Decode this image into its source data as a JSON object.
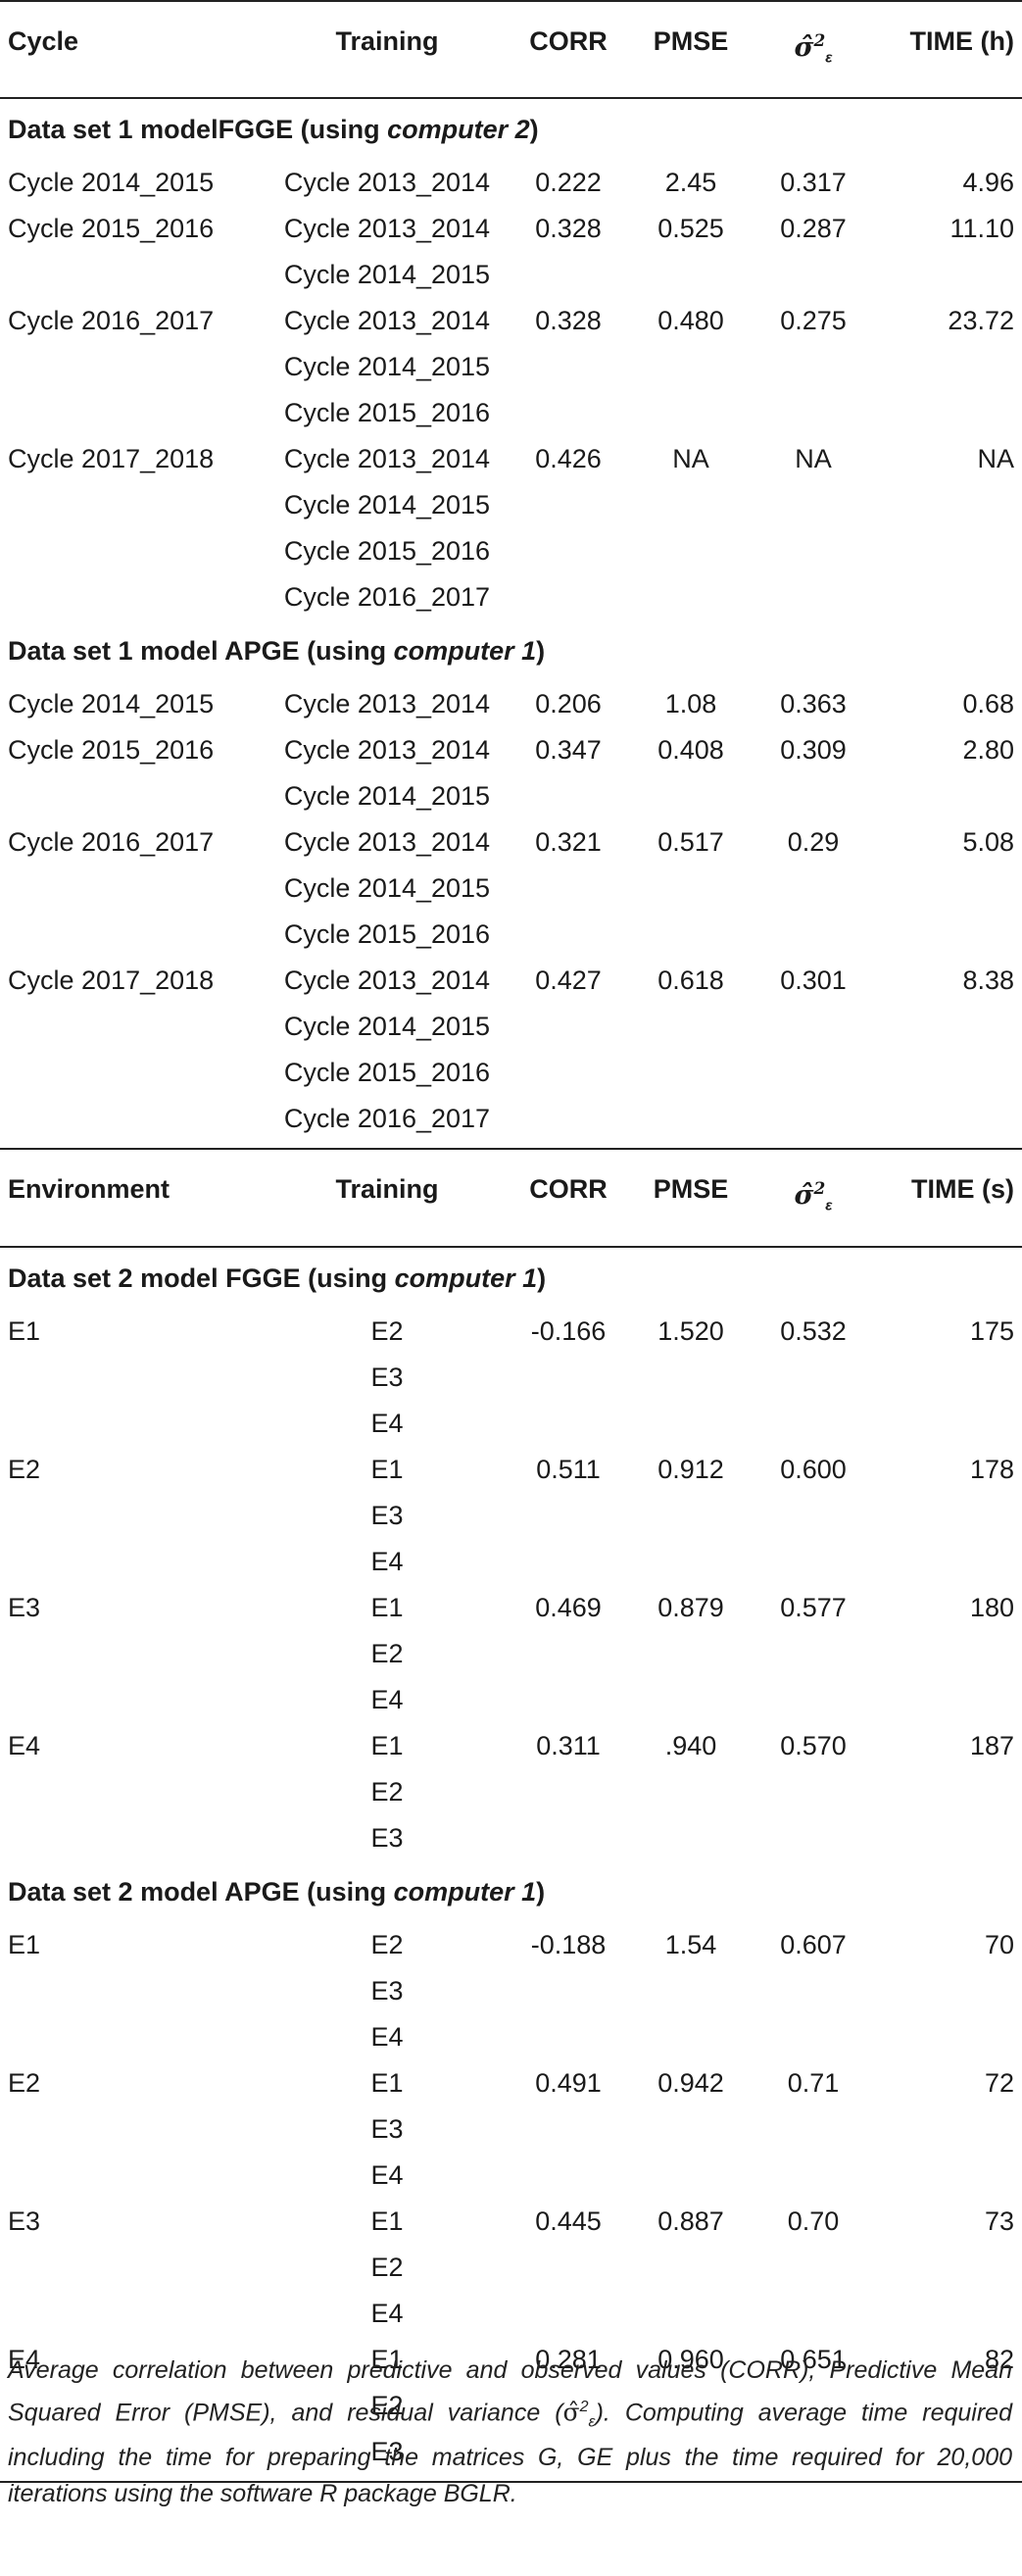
{
  "headers1": [
    "Cycle",
    "Training",
    "CORR",
    "PMSE",
    "σ̂",
    "TIME (h)"
  ],
  "headers2": [
    "Environment",
    "Training",
    "CORR",
    "PMSE",
    "σ̂",
    "TIME (s)"
  ],
  "sigma_sup": "2",
  "sigma_sub": "ε",
  "sections": [
    {
      "pre": "Data set 1 modelFGGE (using ",
      "em": "computer 2",
      "post": ")",
      "rows": [
        {
          "cycle": "Cycle 2014_2015",
          "training": [
            "Cycle 2013_2014"
          ],
          "corr": "0.222",
          "pmse": "2.45",
          "sigma": "0.317",
          "time": "4.96"
        },
        {
          "cycle": "Cycle 2015_2016",
          "training": [
            "Cycle 2013_2014",
            "Cycle 2014_2015"
          ],
          "corr": "0.328",
          "pmse": "0.525",
          "sigma": "0.287",
          "time": "11.10"
        },
        {
          "cycle": "Cycle 2016_2017",
          "training": [
            "Cycle 2013_2014",
            "Cycle 2014_2015",
            "Cycle 2015_2016"
          ],
          "corr": "0.328",
          "pmse": "0.480",
          "sigma": "0.275",
          "time": "23.72"
        },
        {
          "cycle": "Cycle 2017_2018",
          "training": [
            "Cycle 2013_2014",
            "Cycle 2014_2015",
            "Cycle 2015_2016",
            "Cycle 2016_2017"
          ],
          "corr": "0.426",
          "pmse": "NA",
          "sigma": "NA",
          "time": "NA"
        }
      ]
    },
    {
      "pre": "Data set 1 model APGE (using ",
      "em": "computer 1",
      "post": ")",
      "rows": [
        {
          "cycle": "Cycle 2014_2015",
          "training": [
            "Cycle 2013_2014"
          ],
          "corr": "0.206",
          "pmse": "1.08",
          "sigma": "0.363",
          "time": "0.68"
        },
        {
          "cycle": "Cycle 2015_2016",
          "training": [
            "Cycle 2013_2014",
            "Cycle 2014_2015"
          ],
          "corr": "0.347",
          "pmse": "0.408",
          "sigma": "0.309",
          "time": "2.80"
        },
        {
          "cycle": "Cycle 2016_2017",
          "training": [
            "Cycle 2013_2014",
            "Cycle 2014_2015",
            "Cycle 2015_2016"
          ],
          "corr": "0.321",
          "pmse": "0.517",
          "sigma": "0.29",
          "time": "5.08"
        },
        {
          "cycle": "Cycle 2017_2018",
          "training": [
            "Cycle 2013_2014",
            "Cycle 2014_2015",
            "Cycle 2015_2016",
            "Cycle 2016_2017"
          ],
          "corr": "0.427",
          "pmse": "0.618",
          "sigma": "0.301",
          "time": "8.38"
        }
      ]
    },
    {
      "pre": "Data set 2 model FGGE (using ",
      "em": "computer 1",
      "post": ")",
      "rows": [
        {
          "cycle": "E1",
          "training": [
            "E2",
            "E3",
            "E4"
          ],
          "corr": "-0.166",
          "pmse": "1.520",
          "sigma": "0.532",
          "time": "175"
        },
        {
          "cycle": "E2",
          "training": [
            "E1",
            "E3",
            "E4"
          ],
          "corr": "0.511",
          "pmse": "0.912",
          "sigma": "0.600",
          "time": "178"
        },
        {
          "cycle": "E3",
          "training": [
            "E1",
            "E2",
            "E4"
          ],
          "corr": "0.469",
          "pmse": "0.879",
          "sigma": "0.577",
          "time": "180"
        },
        {
          "cycle": "E4",
          "training": [
            "E1",
            "E2",
            "E3"
          ],
          "corr": "0.311",
          "pmse": ".940",
          "sigma": "0.570",
          "time": "187"
        }
      ]
    },
    {
      "pre": "Data set 2 model APGE (using ",
      "em": "computer 1",
      "post": ")",
      "rows": [
        {
          "cycle": "E1",
          "training": [
            "E2",
            "E3",
            "E4"
          ],
          "corr": "-0.188",
          "pmse": "1.54",
          "sigma": "0.607",
          "time": "70"
        },
        {
          "cycle": "E2",
          "training": [
            "E1",
            "E3",
            "E4"
          ],
          "corr": "0.491",
          "pmse": "0.942",
          "sigma": "0.71",
          "time": "72"
        },
        {
          "cycle": "E3",
          "training": [
            "E1",
            "E2",
            "E4"
          ],
          "corr": "0.445",
          "pmse": "0.887",
          "sigma": "0.70",
          "time": "73"
        },
        {
          "cycle": "E4",
          "training": [
            "E1",
            "E2",
            "E3"
          ],
          "corr": "0.281",
          "pmse": "0.960",
          "sigma": "0.651",
          "time": "82"
        }
      ]
    }
  ],
  "footnote": {
    "part1": "Average correlation between predictive and observed values (CORR), Predictive Mean Squared Error (PMSE), and residual variance (",
    "sigma": "σ̂",
    "part2": "). Computing average time required including the time for preparing the matrices G, GE plus the time required for 20,000 iterations using the software R package BGLR."
  }
}
